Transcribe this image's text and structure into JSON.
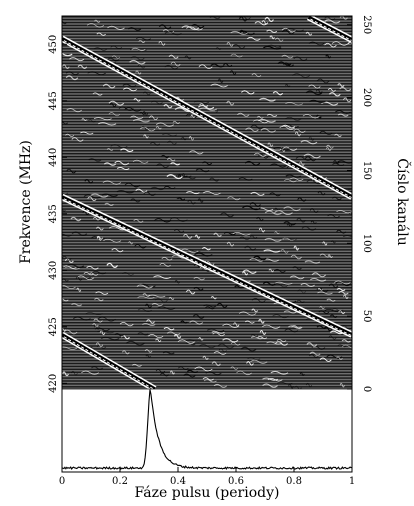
{
  "chart_data": [
    {
      "type": "heatmap",
      "title": "",
      "xlabel": "",
      "ylabel_left": "Frekvence (MHz)",
      "ylabel_right": "Číslo kanálu",
      "xlim": [
        0,
        1
      ],
      "ylim_left": [
        419.5,
        452.5
      ],
      "ylim_right": [
        0,
        256
      ],
      "left_ticks": [
        {
          "value": 420,
          "label": "420"
        },
        {
          "value": 425,
          "label": "425"
        },
        {
          "value": 430,
          "label": "430"
        },
        {
          "value": 435,
          "label": "435"
        },
        {
          "value": 440,
          "label": "440"
        },
        {
          "value": 445,
          "label": "445"
        },
        {
          "value": 450,
          "label": "450"
        }
      ],
      "right_ticks": [
        {
          "value": 0,
          "label": "0"
        },
        {
          "value": 50,
          "label": "50"
        },
        {
          "value": 100,
          "label": "100"
        },
        {
          "value": 150,
          "label": "150"
        },
        {
          "value": 200,
          "label": "200"
        },
        {
          "value": 250,
          "label": "250"
        }
      ],
      "dispersed_pulse_tracks": [
        {
          "freq_start": 452.4,
          "phase_start": 0.85,
          "freq_end": 450.4,
          "phase_end": 1.0
        },
        {
          "freq_start": 450.5,
          "phase_start": 0.0,
          "freq_end": 436.5,
          "phase_end": 1.0
        },
        {
          "freq_start": 436.5,
          "phase_start": 0.0,
          "freq_end": 424.3,
          "phase_end": 1.0
        },
        {
          "freq_start": 424.3,
          "phase_start": 0.0,
          "freq_end": 419.5,
          "phase_end": 0.32
        }
      ]
    },
    {
      "type": "line",
      "title": "",
      "xlabel": "Fáze pulsu (periody)",
      "ylabel": "",
      "xlim": [
        0,
        1
      ],
      "x_ticks": [
        {
          "value": 0,
          "label": "0"
        },
        {
          "value": 0.2,
          "label": "0.2"
        },
        {
          "value": 0.4,
          "label": "0.4"
        },
        {
          "value": 0.6,
          "label": "0.6"
        },
        {
          "value": 0.8,
          "label": "0.8"
        },
        {
          "value": 1,
          "label": "1"
        }
      ],
      "baseline": 0.05,
      "peak_phase": 0.305,
      "peak_height": 1.0,
      "ylim": [
        0,
        1.05
      ]
    }
  ]
}
